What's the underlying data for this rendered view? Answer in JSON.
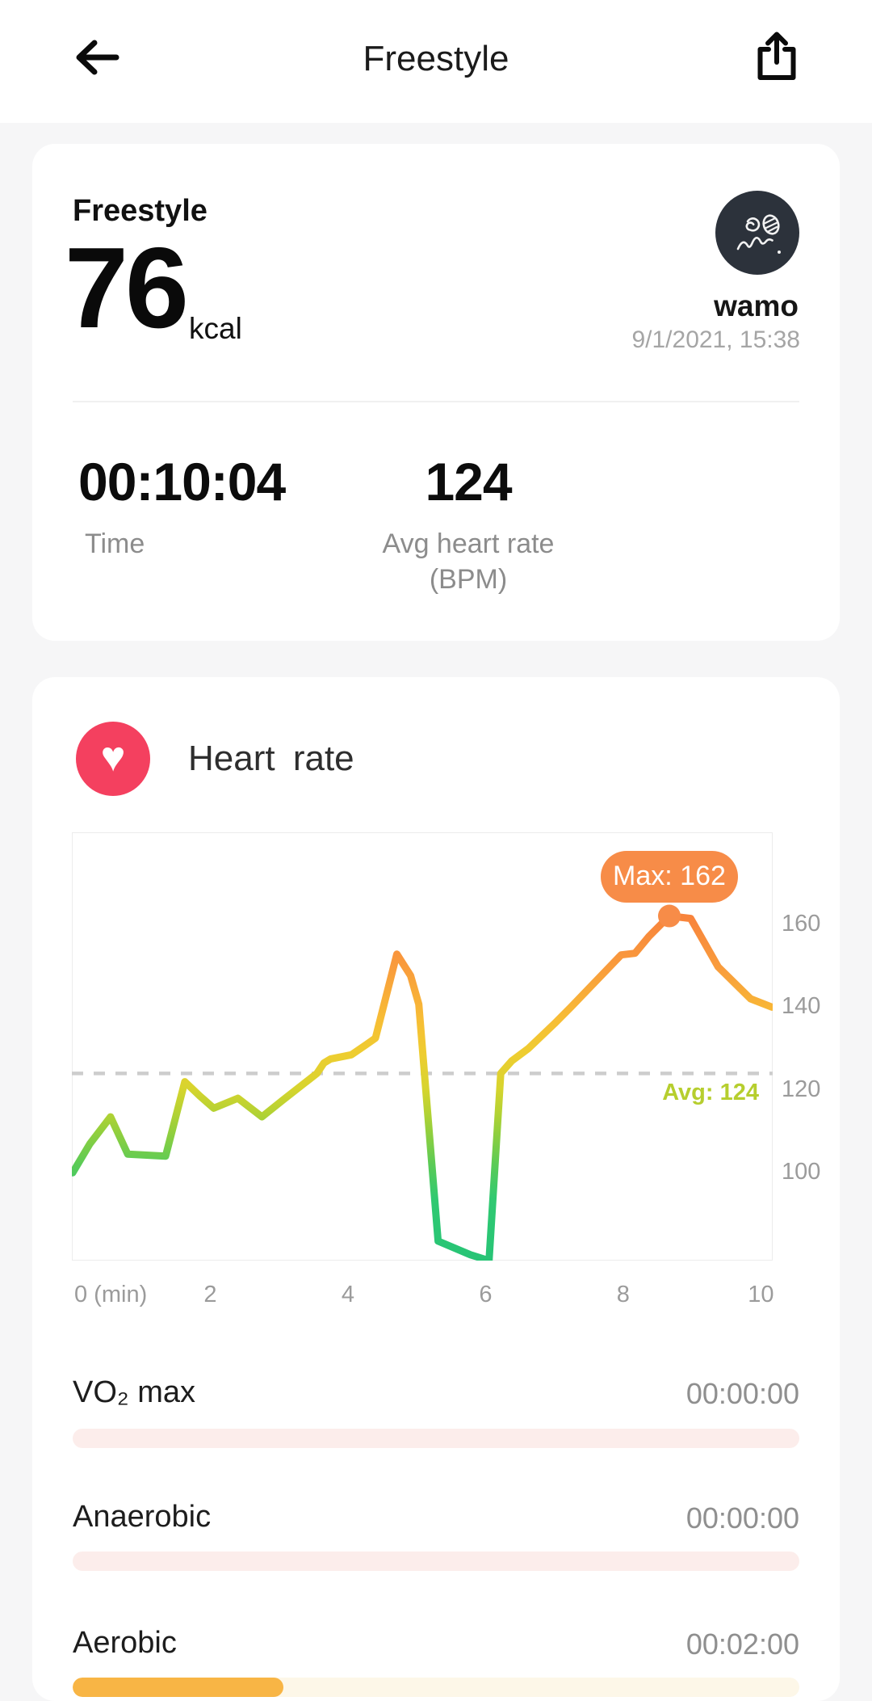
{
  "header": {
    "title": "Freestyle"
  },
  "summary": {
    "activity": "Freestyle",
    "calories": "76",
    "calories_unit": "kcal",
    "user_name": "wamo",
    "datetime": "9/1/2021, 15:38",
    "stat_time": {
      "value": "00:10:04",
      "label": "Time"
    },
    "stat_hr": {
      "value": "124",
      "label_line1": "Avg heart rate",
      "label_line2": "(BPM)"
    }
  },
  "heart_rate": {
    "title": "Heart rate",
    "max_badge": "Max: 162",
    "avg_label": "Avg: 124",
    "zones": [
      {
        "label": "VO₂ max",
        "value": "00:00:00",
        "pct": 0,
        "track": "#fcedeb",
        "fill": "#f8b545"
      },
      {
        "label": "Anaerobic",
        "value": "00:00:00",
        "pct": 0,
        "track": "#fcedeb",
        "fill": "#f8b545"
      },
      {
        "label": "Aerobic",
        "value": "00:02:00",
        "pct": 29,
        "track": "#fdf7e8",
        "fill": "#f8b545"
      }
    ]
  },
  "chart_data": {
    "type": "line",
    "title": "Heart rate",
    "xlabel": "min",
    "ylabel": "BPM",
    "x_ticks": [
      {
        "label": "0 (min)",
        "min": 0
      },
      {
        "label": "2",
        "min": 2
      },
      {
        "label": "4",
        "min": 4
      },
      {
        "label": "6",
        "min": 6
      },
      {
        "label": "8",
        "min": 8
      },
      {
        "label": "10",
        "min": 10
      }
    ],
    "y_ticks": [
      160,
      140,
      120,
      100
    ],
    "xlim": [
      0,
      10.16
    ],
    "ylim": [
      79,
      182
    ],
    "grid": false,
    "avg": 124,
    "max": 162,
    "max_point": {
      "min": 8.67,
      "bpm": 162
    },
    "avg_line_color": "#cdcdcd",
    "series": [
      {
        "name": "heart_rate_bpm",
        "points": [
          [
            0,
            100
          ],
          [
            0.25,
            107
          ],
          [
            0.55,
            113.5
          ],
          [
            0.8,
            104.5
          ],
          [
            1.35,
            104
          ],
          [
            1.63,
            122
          ],
          [
            1.85,
            118.5
          ],
          [
            2.05,
            115.6
          ],
          [
            2.4,
            118
          ],
          [
            2.75,
            113.5
          ],
          [
            3.05,
            117.5
          ],
          [
            3.55,
            124
          ],
          [
            3.65,
            126.5
          ],
          [
            3.75,
            127.5
          ],
          [
            4.05,
            128.5
          ],
          [
            4.27,
            131
          ],
          [
            4.4,
            132.5
          ],
          [
            4.71,
            152.8
          ],
          [
            4.91,
            147.6
          ],
          [
            5.03,
            140.7
          ],
          [
            5.31,
            83.5
          ],
          [
            5.78,
            80.2
          ],
          [
            6.05,
            78.8
          ],
          [
            6.22,
            124
          ],
          [
            6.38,
            127
          ],
          [
            6.62,
            130
          ],
          [
            7.0,
            136
          ],
          [
            7.24,
            140
          ],
          [
            7.97,
            152.6
          ],
          [
            8.17,
            153
          ],
          [
            8.37,
            157
          ],
          [
            8.67,
            162
          ],
          [
            8.98,
            161.4
          ],
          [
            9.38,
            149.7
          ],
          [
            9.85,
            142
          ],
          [
            10.16,
            140
          ]
        ]
      }
    ],
    "gradient": [
      [
        "0%",
        "#f8833c"
      ],
      [
        "15%",
        "#f99c3c"
      ],
      [
        "30%",
        "#f7bd35"
      ],
      [
        "40%",
        "#eecd30"
      ],
      [
        "50%",
        "#d7d42e"
      ],
      [
        "57%",
        "#b4d233"
      ],
      [
        "63%",
        "#90cf3e"
      ],
      [
        "72%",
        "#5bcb56"
      ],
      [
        "82%",
        "#30c971"
      ],
      [
        "100%",
        "#27c476"
      ]
    ]
  },
  "colors": {
    "badge_orange": "#f78c48",
    "avg_text": "#b6ce2e",
    "heart_icon": "#f4405f"
  }
}
